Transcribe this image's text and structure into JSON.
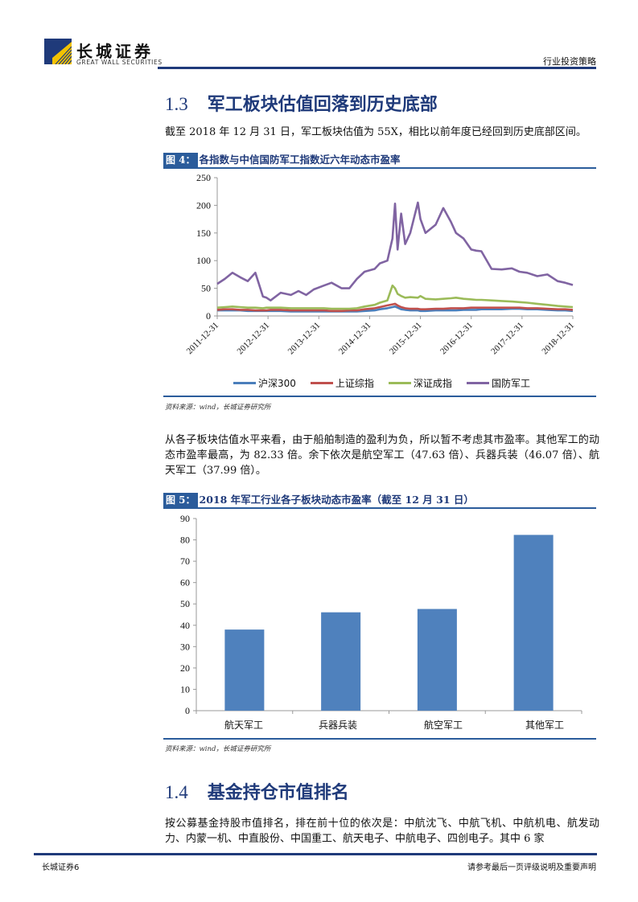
{
  "header": {
    "logo_cn": "长城证券",
    "logo_en": "GREAT WALL SECURITIES",
    "category": "行业投资策略",
    "brand_color": "#1f3a7a"
  },
  "section_1_3": {
    "number": "1.3",
    "title": "军工板块估值回落到历史底部",
    "paragraph": "截至 2018 年 12 月 31 日，军工板块估值为 55X，相比以前年度已经回到历史底部区间。"
  },
  "figure4": {
    "tag": "图 4：",
    "caption": "各指数与中信国防军工指数近六年动态市盈率",
    "source": "资料来源：wind，长城证券研究所"
  },
  "paragraph2": "从各子板块估值水平来看，由于船舶制造的盈利为负，所以暂不考虑其市盈率。其他军工的动态市盈率最高，为 82.33 倍。余下依次是航空军工（47.63 倍）、兵器兵装（46.07 倍）、航天军工（37.99 倍）。",
  "figure5": {
    "tag": "图 5：",
    "caption": "2018 年军工行业各子板块动态市盈率（截至 12 月 31 日）",
    "source": "资料来源：wind，长城证券研究所"
  },
  "section_1_4": {
    "number": "1.4",
    "title": "基金持仓市值排名",
    "paragraph": "按公募基金持股市值排名，排在前十位的依次是：中航沈飞、中航飞机、中航机电、航发动力、内蒙一机、中直股份、中国重工、航天电子、中航电子、四创电子。其中 6 家"
  },
  "footer": {
    "left": "长城证券6",
    "right": "请参考最后一页评级说明及重要声明"
  },
  "chart_data": [
    {
      "type": "line",
      "title": "各指数与中信国防军工指数近六年动态市盈率",
      "xlabel": "",
      "ylabel": "",
      "ylim": [
        0,
        250
      ],
      "yticks": [
        0,
        50,
        100,
        150,
        200,
        250
      ],
      "x_tick_labels": [
        "2011-12-31",
        "2012-12-31",
        "2013-12-31",
        "2014-12-31",
        "2015-12-31",
        "2016-12-31",
        "2017-12-31",
        "2018-12-31"
      ],
      "x_range": [
        2012.0,
        2019.0
      ],
      "grid": false,
      "legend_position": "bottom",
      "x": [
        2012.0,
        2012.15,
        2012.3,
        2012.45,
        2012.6,
        2012.75,
        2012.9,
        2012.97,
        2013.05,
        2013.25,
        2013.45,
        2013.6,
        2013.75,
        2013.9,
        2014.1,
        2014.25,
        2014.45,
        2014.6,
        2014.75,
        2014.9,
        2015.1,
        2015.2,
        2015.35,
        2015.45,
        2015.5,
        2015.55,
        2015.62,
        2015.7,
        2015.8,
        2015.95,
        2016.0,
        2016.1,
        2016.3,
        2016.45,
        2016.6,
        2016.7,
        2016.85,
        2017.0,
        2017.1,
        2017.2,
        2017.4,
        2017.6,
        2017.8,
        2017.95,
        2018.1,
        2018.3,
        2018.5,
        2018.7,
        2018.85,
        2019.0
      ],
      "series": [
        {
          "name": "沪深300",
          "color": "#4a7ebb",
          "values": [
            10,
            10,
            10,
            10,
            9,
            9,
            9,
            9,
            9,
            9,
            8,
            8,
            8,
            8,
            8,
            8,
            8,
            8,
            8,
            9,
            10,
            12,
            14,
            16,
            17,
            15,
            12,
            11,
            10,
            10,
            9,
            9,
            10,
            10,
            10,
            10,
            11,
            11,
            11,
            12,
            12,
            12,
            13,
            13,
            12,
            12,
            11,
            10,
            10,
            9
          ]
        },
        {
          "name": "上证综指",
          "color": "#c0504d",
          "values": [
            11,
            12,
            12,
            11,
            11,
            10,
            10,
            10,
            11,
            11,
            10,
            10,
            10,
            10,
            10,
            9,
            9,
            10,
            10,
            12,
            14,
            16,
            19,
            21,
            22,
            19,
            16,
            14,
            13,
            13,
            12,
            12,
            13,
            13,
            14,
            14,
            14,
            15,
            15,
            15,
            15,
            15,
            15,
            15,
            14,
            14,
            13,
            12,
            12,
            11
          ]
        },
        {
          "name": "深证成指",
          "color": "#9bbb59",
          "values": [
            15,
            16,
            17,
            16,
            15,
            15,
            14,
            15,
            15,
            15,
            14,
            14,
            14,
            14,
            14,
            13,
            13,
            13,
            14,
            17,
            20,
            24,
            28,
            55,
            50,
            40,
            36,
            33,
            34,
            33,
            36,
            31,
            30,
            31,
            32,
            33,
            31,
            30,
            29,
            29,
            28,
            27,
            26,
            25,
            24,
            22,
            20,
            18,
            17,
            16
          ]
        },
        {
          "name": "国防军工",
          "color": "#8064a2",
          "values": [
            58,
            67,
            78,
            70,
            63,
            78,
            35,
            33,
            28,
            42,
            38,
            45,
            38,
            48,
            55,
            60,
            50,
            50,
            67,
            80,
            85,
            95,
            100,
            140,
            203,
            120,
            185,
            130,
            150,
            205,
            175,
            150,
            165,
            195,
            170,
            150,
            140,
            120,
            118,
            117,
            85,
            84,
            86,
            80,
            78,
            72,
            75,
            63,
            60,
            56
          ]
        }
      ]
    },
    {
      "type": "bar",
      "title": "2018 年军工行业各子板块动态市盈率（截至 12 月 31 日）",
      "categories": [
        "航天军工",
        "兵器兵装",
        "航空军工",
        "其他军工"
      ],
      "values": [
        37.99,
        46.07,
        47.63,
        82.33
      ],
      "color": "#4f81bd",
      "xlabel": "",
      "ylabel": "",
      "ylim": [
        0,
        90
      ],
      "yticks": [
        0,
        10,
        20,
        30,
        40,
        50,
        60,
        70,
        80,
        90
      ],
      "grid": false
    }
  ]
}
